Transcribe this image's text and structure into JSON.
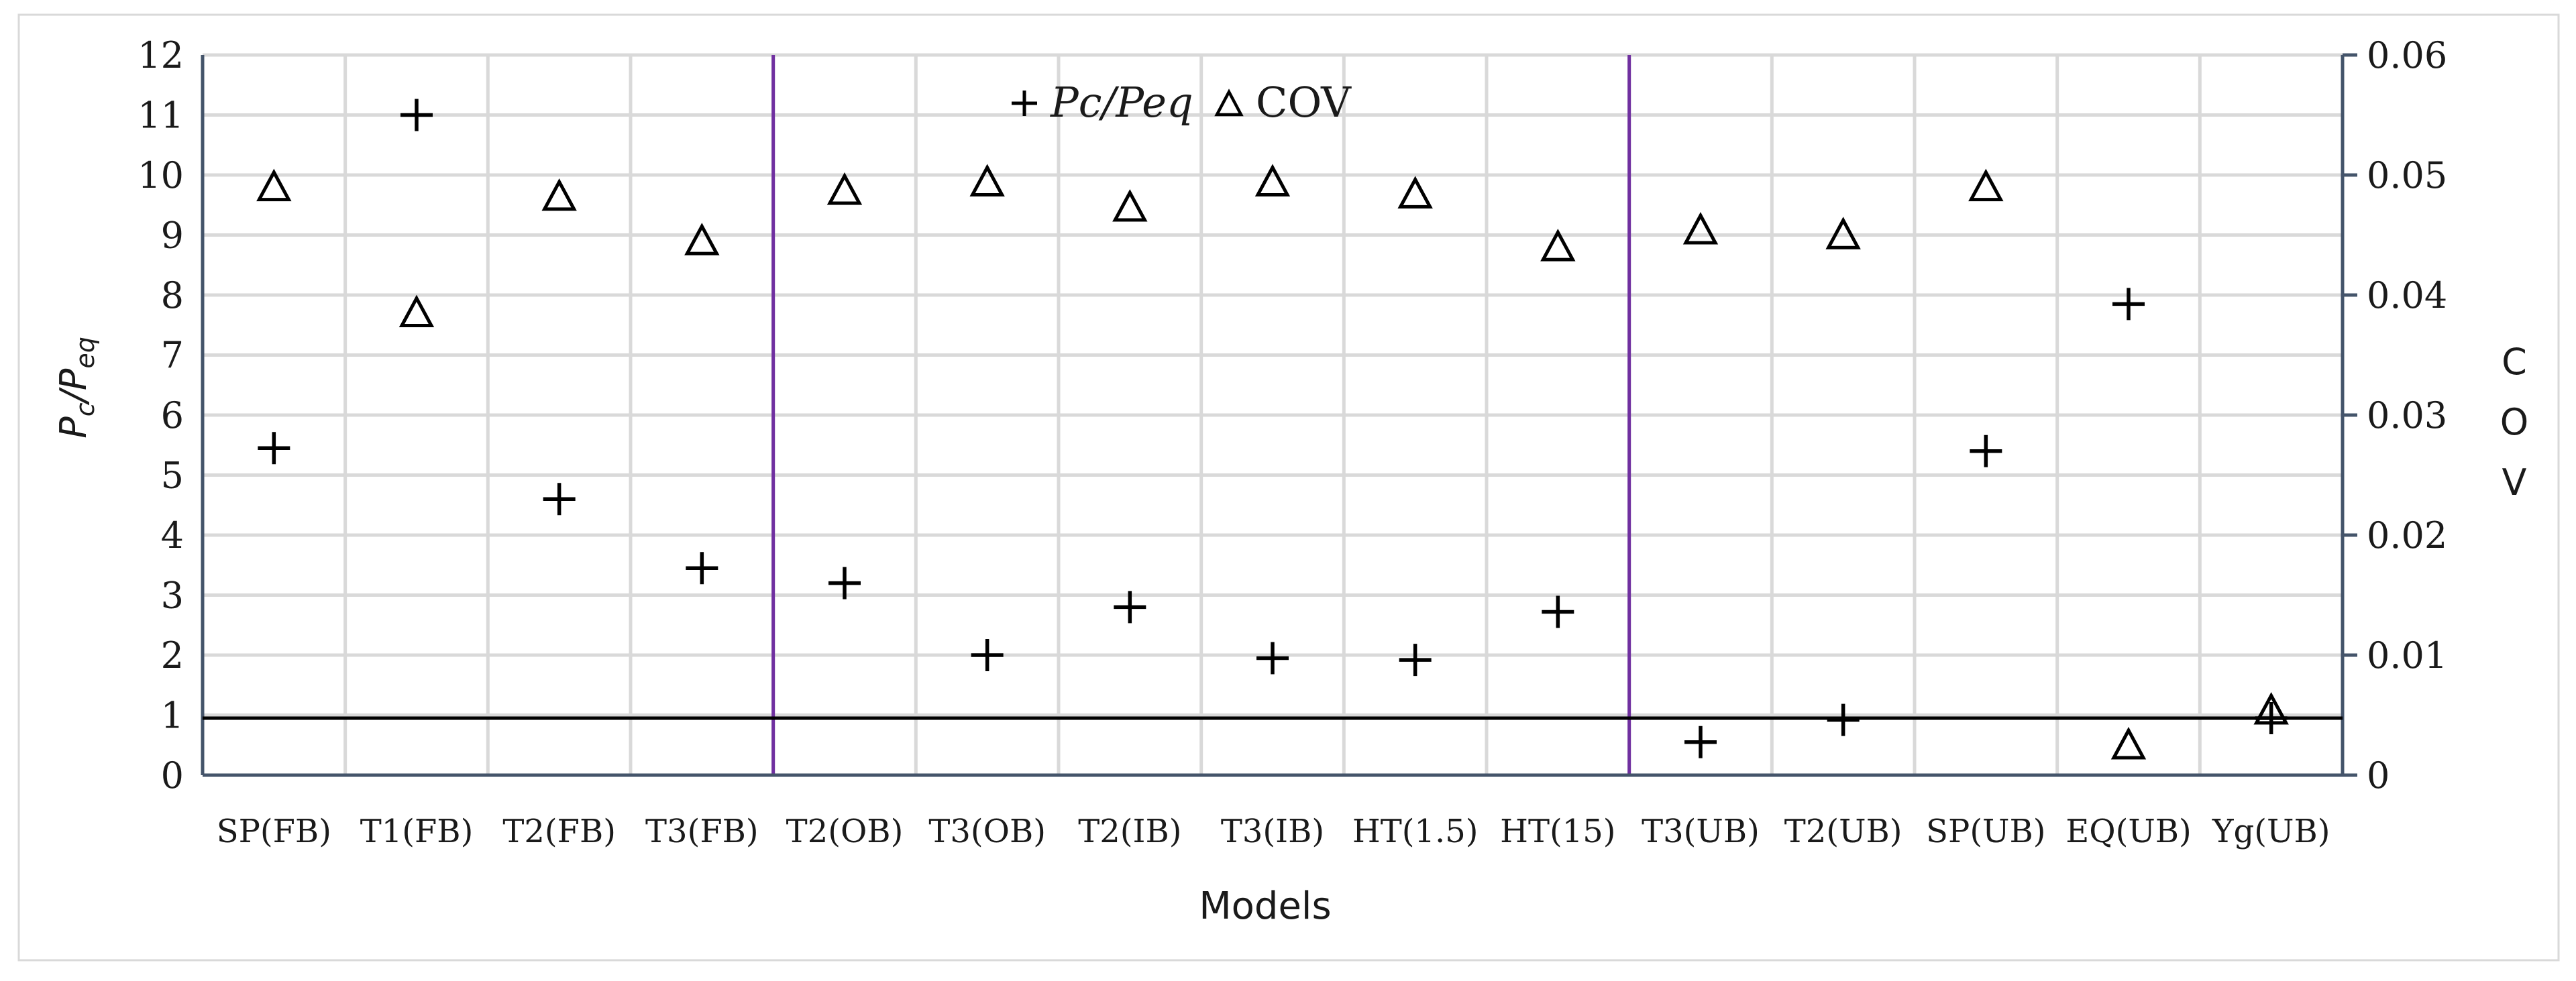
{
  "chart_data": {
    "type": "scatter",
    "categories": [
      "SP(FB)",
      "T1(FB)",
      "T2(FB)",
      "T3(FB)",
      "T2(OB)",
      "T3(OB)",
      "T2(IB)",
      "T3(IB)",
      "HT(1.5)",
      "HT(15)",
      "T3(UB)",
      "T2(UB)",
      "SP(UB)",
      "EQ(UB)",
      "Yg(UB)"
    ],
    "series": [
      {
        "name": "Pc/Peq",
        "axis": "left",
        "marker": "plus",
        "values": [
          5.45,
          11.0,
          4.6,
          3.45,
          3.2,
          2.0,
          2.8,
          1.95,
          1.92,
          2.72,
          0.55,
          0.92,
          5.4,
          7.85,
          0.95
        ]
      },
      {
        "name": "COV",
        "axis": "right",
        "marker": "triangle",
        "values": [
          0.049,
          0.0385,
          0.0482,
          0.0445,
          0.0487,
          0.0494,
          0.0473,
          0.0494,
          0.0484,
          0.044,
          0.0454,
          0.045,
          0.049,
          0.0025,
          0.0054
        ]
      }
    ],
    "xlabel": "Models",
    "ylabel": "Pc/Peq",
    "ylabel_main": "P",
    "ylabel_sub1": "c",
    "ylabel_slash": "/",
    "ylabel_sub2": "eq",
    "y2label": "COV",
    "y2label_letters": [
      "C",
      "O",
      "V"
    ],
    "ylim": [
      0,
      12
    ],
    "y2lim": [
      0,
      0.06
    ],
    "yticks": [
      "0",
      "1",
      "2",
      "3",
      "4",
      "5",
      "6",
      "7",
      "8",
      "9",
      "10",
      "11",
      "12"
    ],
    "y2ticks": [
      "0",
      "0.01",
      "0.02",
      "0.03",
      "0.04",
      "0.05",
      "0.06"
    ],
    "reference_line": 0.95,
    "group_separators": [
      4,
      10
    ],
    "legend_position": "top-center",
    "legend": [
      {
        "symbol": "+",
        "label": "Pc/Peq"
      },
      {
        "symbol": "Δ",
        "label": "COV"
      }
    ],
    "grid": true,
    "colors": {
      "gridline": "#d9d9d9",
      "axis": "#44546a",
      "separator": "#7030a0",
      "reference": "#000000",
      "marker": "#000000",
      "frame": "#d9d9d9"
    }
  }
}
